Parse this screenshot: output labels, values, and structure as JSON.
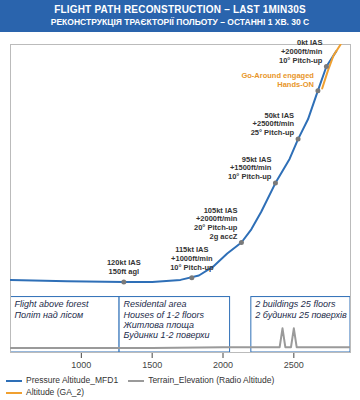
{
  "chart_data": {
    "type": "line",
    "title": "FLIGHT PATH RECONSTRUCTION – LAST 1MIN30S",
    "subtitle": "РЕКОНСТРУКЦІЯ ТРАЄКТОРІЇ ПОЛЬОТУ – ОСТАННІ 1 ХВ. 30 С",
    "xlim": [
      500,
      2900
    ],
    "xticks": [
      1000,
      1500,
      2000,
      2500
    ],
    "ylim": [
      0,
      700
    ],
    "tick_labels": "x",
    "grid": false,
    "legend": "bottom",
    "series": [
      {
        "name": "Pressure Altitude_MFD1",
        "color": "#2e6fb7",
        "line_style": "solid",
        "x": [
          500,
          900,
          1300,
          1500,
          1700,
          1830,
          1930,
          2030,
          2130,
          2200,
          2270,
          2370,
          2470,
          2530,
          2600,
          2670,
          2730,
          2800
        ],
        "values": [
          165,
          162,
          160,
          160,
          165,
          175,
          195,
          225,
          250,
          280,
          320,
          385,
          440,
          485,
          530,
          595,
          650,
          685
        ]
      },
      {
        "name": "Terrain_Elevation (Radio Altitude)",
        "color": "#9a9a9a",
        "line_style": "solid",
        "x": [
          500,
          1500,
          2000,
          2400,
          2420,
          2440,
          2480,
          2500,
          2520,
          2900
        ],
        "values": [
          10,
          10,
          12,
          12,
          55,
          12,
          12,
          55,
          12,
          12
        ]
      },
      {
        "name": "Altitude (GA_2)",
        "color": "#f0a030",
        "line_style": "solid",
        "x": [
          2700,
          2740,
          2780,
          2830
        ],
        "values": [
          600,
          640,
          675,
          700
        ]
      }
    ],
    "annotations": [
      {
        "text": "120kt IAS\n150ft agl",
        "x": 1300,
        "y": 160,
        "color": "#333333"
      },
      {
        "text": "115kt IAS\n+1000ft/min\n10° Pitch-up",
        "x": 1780,
        "y": 170,
        "color": "#333333"
      },
      {
        "text": "105kt IAS\n+2000ft/min\n20° Pitch-up\n2g accZ",
        "x": 2130,
        "y": 250,
        "color": "#333333"
      },
      {
        "text": "95kt IAS\n+1500ft/min\n10° Pitch-up",
        "x": 2370,
        "y": 385,
        "color": "#333333"
      },
      {
        "text": "50kt IAS\n+2500ft/min\n25° Pitch-up",
        "x": 2530,
        "y": 485,
        "color": "#333333"
      },
      {
        "text": "Go-Around engaged\nHands-ON",
        "x": 2670,
        "y": 595,
        "color": "#e8962a"
      },
      {
        "text": "0kt IAS\n+2000ft/min\n10° Pitch-up",
        "x": 2730,
        "y": 650,
        "color": "#333333"
      }
    ],
    "regions": [
      {
        "text": "Flight above forest\nПоліт над лісом",
        "x1": 500,
        "x2": 1270
      },
      {
        "text": "Residental area\nHouses of 1-2 floors\nЖитлова площа\nБудинки 1-2 поверхи",
        "x1": 1270,
        "x2": 2050
      },
      {
        "text": "2 buildings 25 floors\n2 будинки 25 поверхів",
        "x1": 2200,
        "x2": 2900
      }
    ]
  }
}
